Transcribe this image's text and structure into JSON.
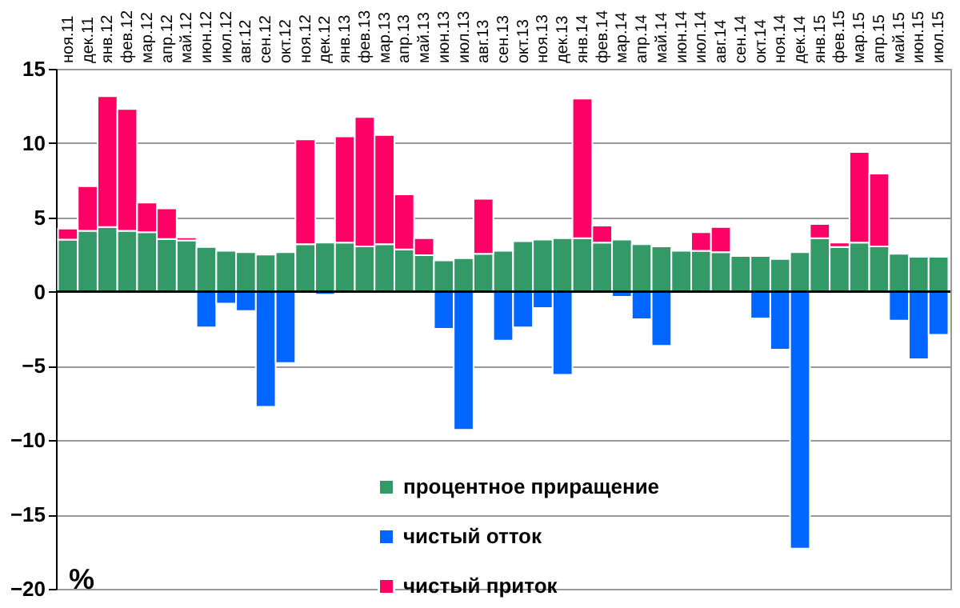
{
  "chart_data": {
    "type": "bar",
    "stacked": true,
    "categories": [
      "ноя.11",
      "дек.11",
      "янв.12",
      "фев.12",
      "мар.12",
      "апр.12",
      "май.12",
      "июн.12",
      "июл.12",
      "авг.12",
      "сен.12",
      "окт.12",
      "ноя.12",
      "дек.12",
      "янв.13",
      "фев.13",
      "мар.13",
      "апр.13",
      "май.13",
      "июн.13",
      "июл.13",
      "авг.13",
      "сен.13",
      "окт.13",
      "ноя.13",
      "дек.13",
      "янв.14",
      "фев.14",
      "мар.14",
      "апр.14",
      "май.14",
      "июн.14",
      "июл.14",
      "авг.14",
      "сен.14",
      "окт.14",
      "ноя.14",
      "дек.14",
      "янв.15",
      "фев.15",
      "мар.15",
      "апр.15",
      "май.15",
      "июн.15",
      "июл.15"
    ],
    "series": [
      {
        "name": "процентное приращение",
        "color": "#339966",
        "values": [
          3.5,
          4.1,
          4.35,
          4.1,
          4.0,
          3.55,
          3.45,
          3.0,
          2.75,
          2.65,
          2.5,
          2.65,
          3.2,
          3.3,
          3.3,
          3.05,
          3.2,
          2.85,
          2.45,
          2.1,
          2.25,
          2.55,
          2.75,
          3.4,
          3.5,
          3.6,
          3.6,
          3.3,
          3.5,
          3.2,
          3.05,
          2.75,
          2.75,
          2.65,
          2.4,
          2.4,
          2.2,
          2.65,
          3.6,
          3.0,
          3.3,
          3.05,
          2.55,
          2.35,
          2.35
        ]
      },
      {
        "name": "чистый отток",
        "color": "#0066ff",
        "values": [
          null,
          null,
          null,
          null,
          null,
          null,
          null,
          -2.4,
          -0.8,
          -1.3,
          -7.75,
          -4.8,
          null,
          -0.2,
          null,
          null,
          null,
          null,
          null,
          -2.5,
          -9.3,
          null,
          -3.3,
          -2.4,
          -1.1,
          -5.6,
          null,
          null,
          -0.35,
          -1.85,
          -3.65,
          null,
          null,
          null,
          null,
          -1.8,
          -3.9,
          -17.3,
          null,
          null,
          null,
          null,
          -1.95,
          -4.55,
          -2.9
        ]
      },
      {
        "name": "чистый приток",
        "color": "#ff0066",
        "values": [
          0.75,
          3.0,
          8.8,
          8.2,
          2.0,
          2.05,
          0.2,
          null,
          null,
          null,
          null,
          null,
          7.05,
          null,
          7.15,
          8.7,
          7.35,
          3.7,
          1.15,
          null,
          null,
          3.7,
          null,
          null,
          null,
          null,
          9.4,
          1.15,
          null,
          null,
          null,
          null,
          1.25,
          1.7,
          null,
          null,
          null,
          null,
          0.95,
          0.3,
          6.1,
          4.9,
          null,
          null,
          null
        ]
      }
    ],
    "ylim": [
      -20,
      15
    ],
    "yticks": [
      -20,
      -15,
      -10,
      -5,
      0,
      5,
      10,
      15
    ],
    "grid": "y",
    "legend": "bottom",
    "annotations": [
      "%"
    ]
  }
}
